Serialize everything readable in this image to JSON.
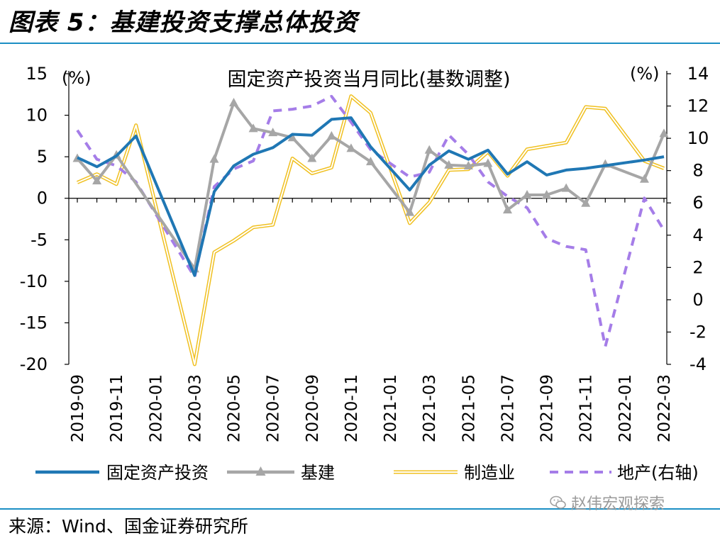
{
  "figure": {
    "title": "图表 5：基建投资支撑总体投资",
    "source": "来源：Wind、国金证券研究所",
    "watermark": "赵伟宏观探索"
  },
  "chart_data": {
    "type": "line",
    "title": "固定资产投资当月同比(基数调整)",
    "y_left_unit": "(%)",
    "y_right_unit": "(%)",
    "y_left_ticks": [
      15,
      10,
      5,
      0,
      -5,
      -10,
      -15,
      -20
    ],
    "y_right_ticks": [
      14,
      12,
      10,
      8,
      6,
      4,
      2,
      0,
      -2,
      -4
    ],
    "ylim_left": [
      -20,
      15
    ],
    "ylim_right": [
      -4,
      14
    ],
    "x": [
      "2019-09",
      "2019-10",
      "2019-11",
      "2019-12",
      "2020-01",
      "2020-02",
      "2020-03",
      "2020-04",
      "2020-05",
      "2020-06",
      "2020-07",
      "2020-08",
      "2020-09",
      "2020-10",
      "2020-11",
      "2020-12",
      "2021-01",
      "2021-02",
      "2021-03",
      "2021-04",
      "2021-05",
      "2021-06",
      "2021-07",
      "2021-08",
      "2021-09",
      "2021-10",
      "2021-11",
      "2021-12",
      "2022-01",
      "2022-02",
      "2022-03"
    ],
    "x_tick_labels": [
      "2019-09",
      "2019-11",
      "2020-01",
      "2020-03",
      "2020-05",
      "2020-07",
      "2020-09",
      "2020-11",
      "2021-01",
      "2021-03",
      "2021-05",
      "2021-07",
      "2021-09",
      "2021-11",
      "2022-01",
      "2022-03"
    ],
    "grid": false,
    "legend_position": "bottom",
    "series": [
      {
        "name": "固定资产投资",
        "axis": "left",
        "style": "solid",
        "color": "#1f77b4",
        "values": [
          4.9,
          3.8,
          5.1,
          7.5,
          null,
          null,
          -9.3,
          0.8,
          3.9,
          5.3,
          6.1,
          7.7,
          7.6,
          9.5,
          9.7,
          6.2,
          null,
          1.0,
          4.0,
          5.7,
          4.7,
          5.8,
          2.9,
          4.4,
          2.8,
          3.4,
          3.6,
          null,
          null,
          4.6,
          5.0
        ]
      },
      {
        "name": "基建",
        "axis": "left",
        "style": "solid-triangle",
        "color": "#a6a6a6",
        "values": [
          4.8,
          2.1,
          5.2,
          null,
          null,
          null,
          -8.5,
          4.7,
          11.5,
          8.4,
          7.9,
          7.3,
          4.8,
          7.5,
          6.0,
          4.4,
          null,
          -1.7,
          5.8,
          4.0,
          3.9,
          4.2,
          -1.4,
          0.4,
          0.4,
          1.2,
          -0.6,
          4.1,
          null,
          2.3,
          7.8
        ]
      },
      {
        "name": "制造业",
        "axis": "left",
        "style": "double-line",
        "color": "#f0c020",
        "values": [
          1.9,
          2.9,
          1.7,
          8.8,
          null,
          null,
          -20.0,
          -6.5,
          -5.1,
          -3.5,
          -3.2,
          4.8,
          3.0,
          3.7,
          12.3,
          10.3,
          null,
          -3.0,
          -0.5,
          3.4,
          3.5,
          5.6,
          2.7,
          5.9,
          6.3,
          6.7,
          11.0,
          10.8,
          null,
          4.5,
          3.6
        ]
      },
      {
        "name": "地产(右轴)",
        "axis": "right",
        "style": "dashed",
        "color": "#a57de8",
        "values": [
          10.5,
          8.7,
          8.3,
          7.3,
          null,
          null,
          1.4,
          7.0,
          8.1,
          8.6,
          11.7,
          11.8,
          12.0,
          12.6,
          11.0,
          9.3,
          null,
          7.6,
          7.9,
          10.2,
          9.0,
          7.3,
          6.4,
          5.7,
          3.8,
          3.3,
          3.1,
          -2.9,
          null,
          6.3,
          4.3
        ]
      }
    ]
  }
}
